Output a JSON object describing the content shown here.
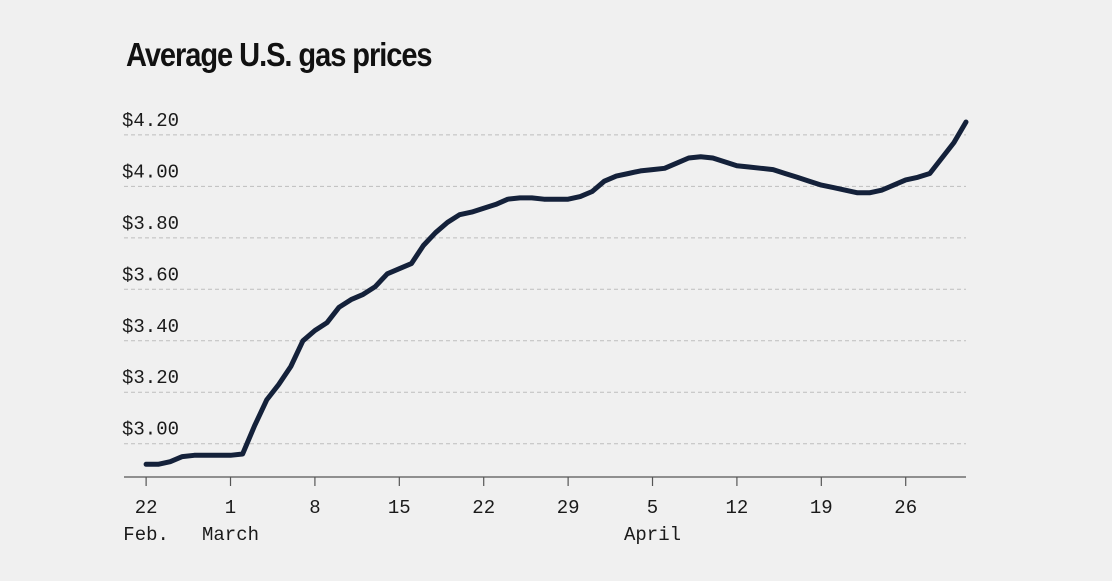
{
  "chart_data": {
    "type": "line",
    "title": "Average U.S. gas prices",
    "xlabel": "",
    "ylabel": "",
    "ylim": [
      2.89,
      4.32
    ],
    "y_ticks": [
      {
        "value": 3.0,
        "label": "$3.00"
      },
      {
        "value": 3.2,
        "label": "$3.20"
      },
      {
        "value": 3.4,
        "label": "$3.40"
      },
      {
        "value": 3.6,
        "label": "$3.60"
      },
      {
        "value": 3.8,
        "label": "$3.80"
      },
      {
        "value": 4.0,
        "label": "$4.00"
      },
      {
        "value": 4.2,
        "label": "$4.20"
      }
    ],
    "x_ticks": [
      {
        "date": "2022-02-22",
        "label": "22",
        "sublabel": "Feb."
      },
      {
        "date": "2022-03-01",
        "label": "1",
        "sublabel": "March"
      },
      {
        "date": "2022-03-08",
        "label": "8",
        "sublabel": ""
      },
      {
        "date": "2022-03-15",
        "label": "15",
        "sublabel": ""
      },
      {
        "date": "2022-03-22",
        "label": "22",
        "sublabel": ""
      },
      {
        "date": "2022-03-29",
        "label": "29",
        "sublabel": ""
      },
      {
        "date": "2022-04-05",
        "label": "5",
        "sublabel": "April"
      },
      {
        "date": "2022-04-12",
        "label": "12",
        "sublabel": ""
      },
      {
        "date": "2022-04-19",
        "label": "19",
        "sublabel": ""
      },
      {
        "date": "2022-04-26",
        "label": "26",
        "sublabel": ""
      }
    ],
    "xlim": [
      "2022-02-20",
      "2022-05-01"
    ],
    "grid": "horizontal dashed",
    "colors": {
      "line": "#14213a",
      "grid": "#bdbdbd",
      "axis": "#555555",
      "text": "#1a1a1a",
      "background": "#f0f0f0"
    },
    "series": [
      {
        "points": [
          [
            "2022-02-22",
            2.92
          ],
          [
            "2022-02-23",
            2.92
          ],
          [
            "2022-02-24",
            2.93
          ],
          [
            "2022-02-25",
            2.95
          ],
          [
            "2022-02-26",
            2.955
          ],
          [
            "2022-02-27",
            2.955
          ],
          [
            "2022-02-28",
            2.955
          ],
          [
            "2022-03-01",
            2.955
          ],
          [
            "2022-03-02",
            2.96
          ],
          [
            "2022-03-03",
            3.07
          ],
          [
            "2022-03-04",
            3.17
          ],
          [
            "2022-03-05",
            3.23
          ],
          [
            "2022-03-06",
            3.3
          ],
          [
            "2022-03-07",
            3.4
          ],
          [
            "2022-03-08",
            3.44
          ],
          [
            "2022-03-09",
            3.47
          ],
          [
            "2022-03-10",
            3.53
          ],
          [
            "2022-03-11",
            3.56
          ],
          [
            "2022-03-12",
            3.58
          ],
          [
            "2022-03-13",
            3.61
          ],
          [
            "2022-03-14",
            3.66
          ],
          [
            "2022-03-15",
            3.68
          ],
          [
            "2022-03-16",
            3.7
          ],
          [
            "2022-03-17",
            3.77
          ],
          [
            "2022-03-18",
            3.82
          ],
          [
            "2022-03-19",
            3.86
          ],
          [
            "2022-03-20",
            3.89
          ],
          [
            "2022-03-21",
            3.9
          ],
          [
            "2022-03-22",
            3.915
          ],
          [
            "2022-03-23",
            3.93
          ],
          [
            "2022-03-24",
            3.95
          ],
          [
            "2022-03-25",
            3.955
          ],
          [
            "2022-03-26",
            3.955
          ],
          [
            "2022-03-27",
            3.95
          ],
          [
            "2022-03-28",
            3.95
          ],
          [
            "2022-03-29",
            3.95
          ],
          [
            "2022-03-30",
            3.96
          ],
          [
            "2022-03-31",
            3.98
          ],
          [
            "2022-04-01",
            4.02
          ],
          [
            "2022-04-02",
            4.04
          ],
          [
            "2022-04-03",
            4.05
          ],
          [
            "2022-04-04",
            4.06
          ],
          [
            "2022-04-05",
            4.065
          ],
          [
            "2022-04-06",
            4.07
          ],
          [
            "2022-04-07",
            4.09
          ],
          [
            "2022-04-08",
            4.11
          ],
          [
            "2022-04-09",
            4.115
          ],
          [
            "2022-04-10",
            4.11
          ],
          [
            "2022-04-11",
            4.095
          ],
          [
            "2022-04-12",
            4.08
          ],
          [
            "2022-04-13",
            4.075
          ],
          [
            "2022-04-14",
            4.07
          ],
          [
            "2022-04-15",
            4.065
          ],
          [
            "2022-04-16",
            4.05
          ],
          [
            "2022-04-17",
            4.035
          ],
          [
            "2022-04-18",
            4.02
          ],
          [
            "2022-04-19",
            4.005
          ],
          [
            "2022-04-20",
            3.995
          ],
          [
            "2022-04-21",
            3.985
          ],
          [
            "2022-04-22",
            3.975
          ],
          [
            "2022-04-23",
            3.975
          ],
          [
            "2022-04-24",
            3.985
          ],
          [
            "2022-04-25",
            4.005
          ],
          [
            "2022-04-26",
            4.025
          ],
          [
            "2022-04-27",
            4.035
          ],
          [
            "2022-04-28",
            4.05
          ],
          [
            "2022-04-29",
            4.11
          ],
          [
            "2022-04-30",
            4.17
          ],
          [
            "2022-05-01",
            4.25
          ]
        ]
      }
    ]
  }
}
